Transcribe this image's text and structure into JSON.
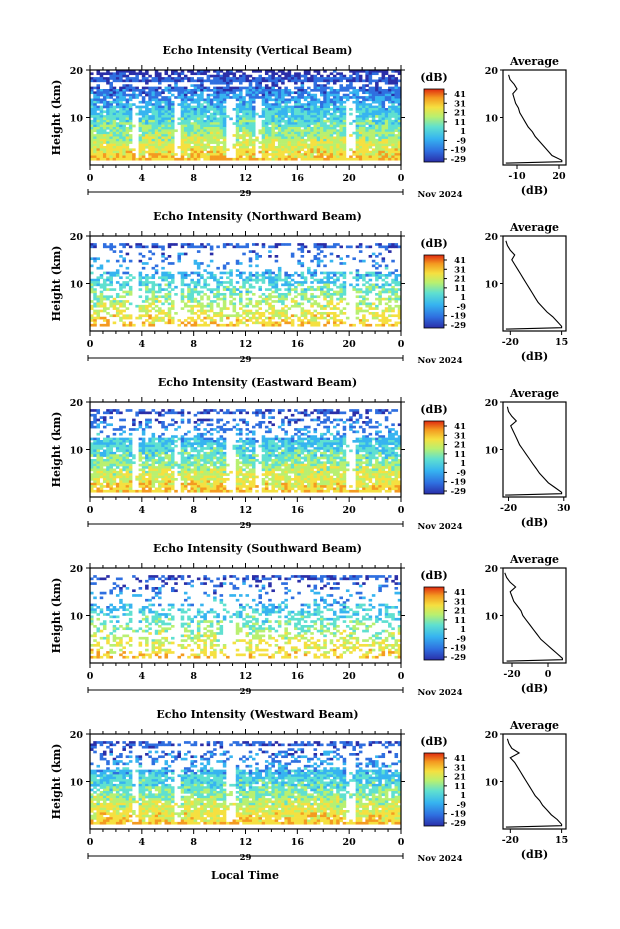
{
  "figure": {
    "xlabel": "Local Time",
    "date_day": "29",
    "date_month": "Nov 2024",
    "x_ticks": [
      "0",
      "4",
      "8",
      "12",
      "16",
      "20",
      "0"
    ],
    "y_ticks": [
      "20",
      "10"
    ],
    "ylabel": "Height (km)",
    "colorbar_unit": "(dB)",
    "colorbar_labels": [
      "41",
      "31",
      "21",
      "11",
      "1",
      "-9",
      "-19",
      "-29"
    ],
    "average_title": "Average",
    "average_xlabel": "(dB)",
    "colors": {
      "colormap": [
        "#2a2ea8",
        "#2f6fe0",
        "#36b4f0",
        "#5fe0d0",
        "#b8f070",
        "#f5e040",
        "#f49a20",
        "#e02a10"
      ]
    }
  },
  "chart_data": [
    {
      "type": "heatmap",
      "title": "Echo Intensity (Vertical Beam)",
      "x_range_hours": [
        0,
        24
      ],
      "y_range_km": [
        0,
        20
      ],
      "colorbar_range_db": [
        -29,
        41
      ],
      "average_profile": {
        "x_ticks": [
          "-10",
          "20"
        ],
        "x_range_db": [
          -20,
          25
        ],
        "height_km": [
          1,
          2,
          3,
          4,
          5,
          6,
          7,
          8,
          9,
          10,
          11,
          12,
          13,
          14,
          15,
          16,
          17,
          18,
          19
        ],
        "db": [
          22,
          15,
          12,
          9,
          6,
          3,
          1,
          -2,
          -4,
          -6,
          -8,
          -9,
          -11,
          -12,
          -13,
          -10,
          -12,
          -15,
          -16
        ]
      }
    },
    {
      "type": "heatmap",
      "title": "Echo Intensity (Northward Beam)",
      "x_range_hours": [
        0,
        24
      ],
      "y_range_km": [
        0,
        20
      ],
      "colorbar_range_db": [
        -29,
        41
      ],
      "average_profile": {
        "x_ticks": [
          "-20",
          "15"
        ],
        "x_range_db": [
          -25,
          18
        ],
        "height_km": [
          1,
          2,
          3,
          4,
          5,
          6,
          7,
          8,
          9,
          10,
          11,
          12,
          13,
          14,
          15,
          16,
          17,
          18,
          19
        ],
        "db": [
          15,
          12,
          9,
          5,
          2,
          -1,
          -3,
          -5,
          -7,
          -9,
          -11,
          -13,
          -15,
          -17,
          -19,
          -17,
          -20,
          -22,
          -23
        ]
      }
    },
    {
      "type": "heatmap",
      "title": "Echo Intensity (Eastward Beam)",
      "x_range_hours": [
        0,
        24
      ],
      "y_range_km": [
        0,
        20
      ],
      "colorbar_range_db": [
        -29,
        41
      ],
      "average_profile": {
        "x_ticks": [
          "-20",
          "30"
        ],
        "x_range_db": [
          -25,
          32
        ],
        "height_km": [
          1,
          2,
          3,
          4,
          5,
          6,
          7,
          8,
          9,
          10,
          11,
          12,
          13,
          14,
          15,
          16,
          17,
          18,
          19
        ],
        "db": [
          28,
          22,
          16,
          12,
          8,
          5,
          2,
          -1,
          -4,
          -7,
          -10,
          -12,
          -14,
          -16,
          -18,
          -13,
          -17,
          -20,
          -21
        ]
      }
    },
    {
      "type": "heatmap",
      "title": "Echo Intensity (Southward Beam)",
      "x_range_hours": [
        0,
        24
      ],
      "y_range_km": [
        0,
        20
      ],
      "colorbar_range_db": [
        -29,
        41
      ],
      "average_profile": {
        "x_ticks": [
          "-20",
          "0"
        ],
        "x_range_db": [
          -25,
          10
        ],
        "height_km": [
          1,
          2,
          3,
          4,
          5,
          6,
          7,
          8,
          9,
          10,
          11,
          12,
          13,
          14,
          15,
          16,
          17,
          18,
          19
        ],
        "db": [
          8,
          5,
          2,
          -1,
          -4,
          -6,
          -8,
          -10,
          -12,
          -14,
          -15,
          -17,
          -19,
          -20,
          -21,
          -18,
          -21,
          -23,
          -24
        ]
      }
    },
    {
      "type": "heatmap",
      "title": "Echo Intensity (Westward Beam)",
      "x_range_hours": [
        0,
        24
      ],
      "y_range_km": [
        0,
        20
      ],
      "colorbar_range_db": [
        -29,
        41
      ],
      "average_profile": {
        "x_ticks": [
          "-20",
          "15"
        ],
        "x_range_db": [
          -25,
          18
        ],
        "height_km": [
          1,
          2,
          3,
          4,
          5,
          6,
          7,
          8,
          9,
          10,
          11,
          12,
          13,
          14,
          15,
          16,
          17,
          18,
          19
        ],
        "db": [
          15,
          12,
          8,
          5,
          2,
          0,
          -3,
          -5,
          -7,
          -9,
          -11,
          -13,
          -15,
          -17,
          -20,
          -14,
          -19,
          -21,
          -22
        ]
      }
    }
  ]
}
